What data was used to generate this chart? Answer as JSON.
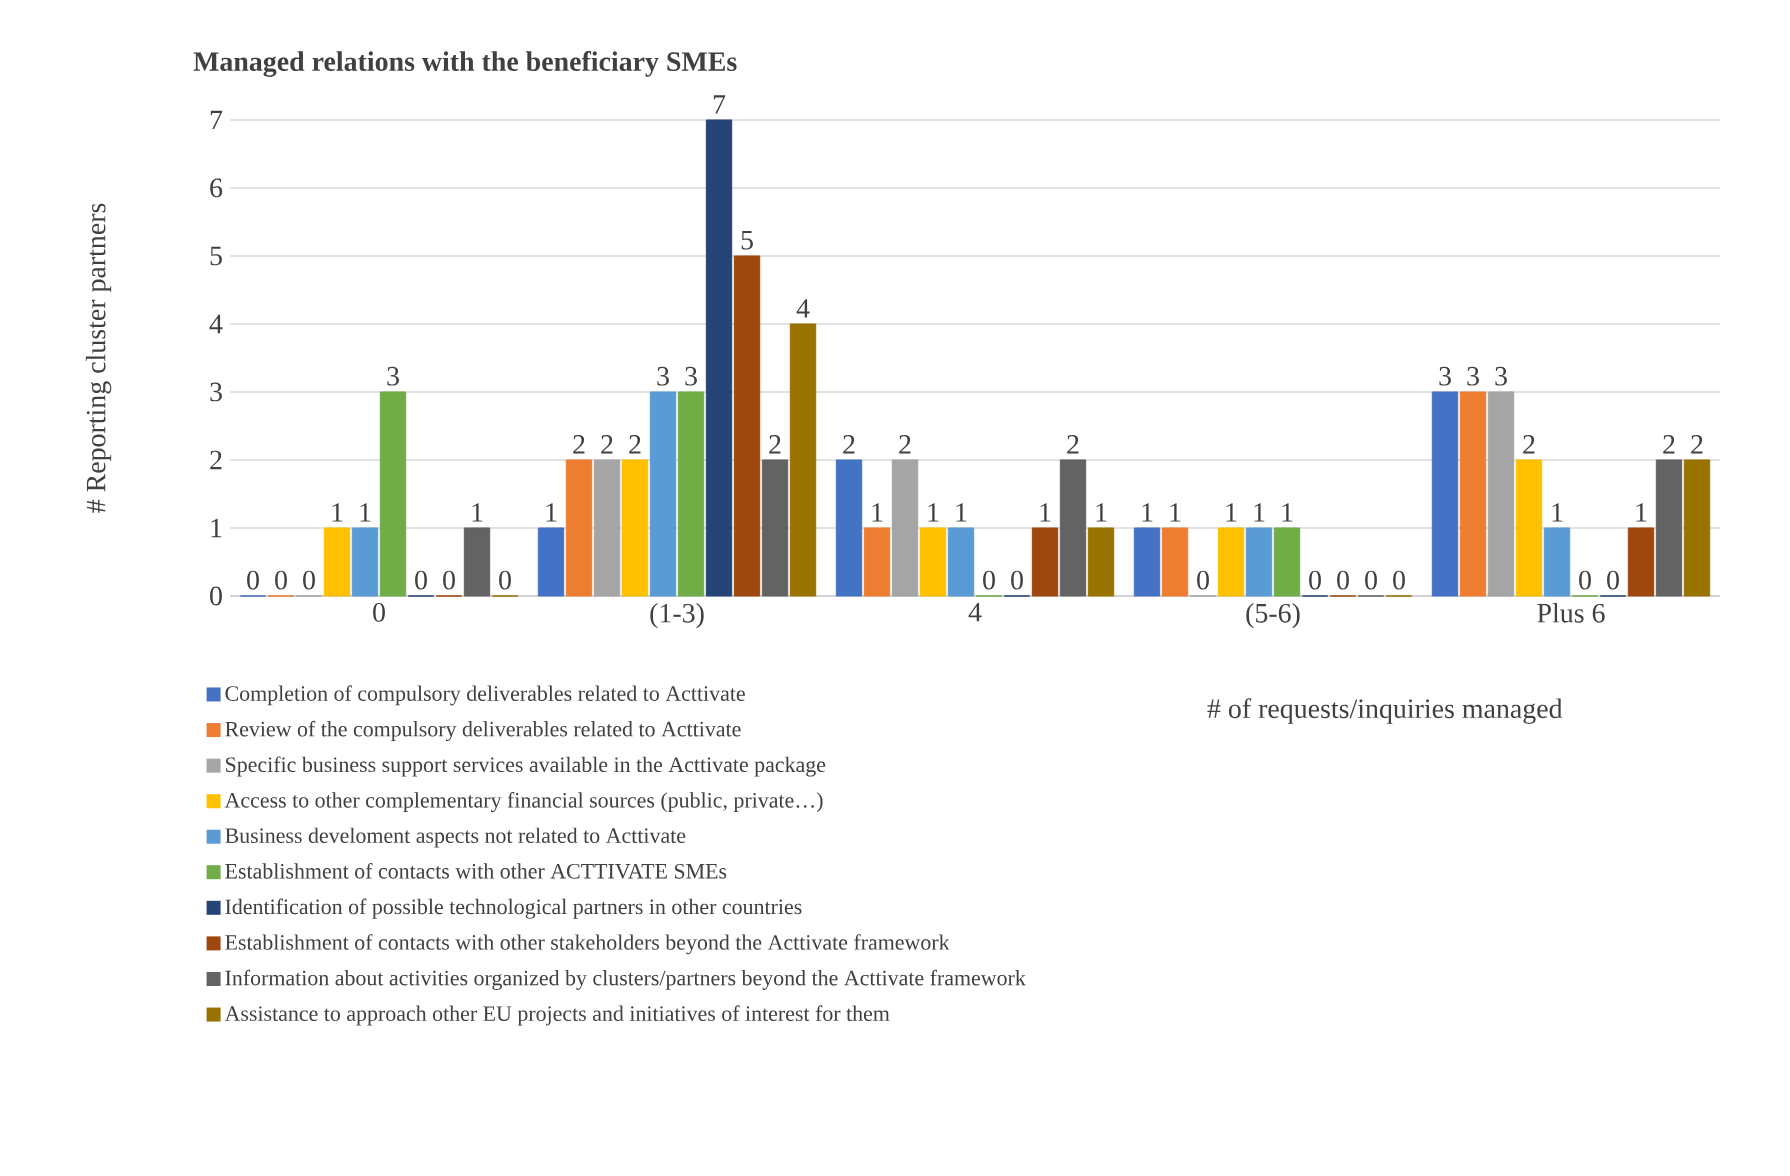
{
  "chart_data": {
    "type": "bar",
    "title": "Managed relations with the beneficiary SMEs",
    "xlabel": "#  of requests/inquiries managed",
    "ylabel": "# Reporting cluster partners",
    "categories": [
      "0",
      "(1-3)",
      "4",
      "(5-6)",
      "Plus 6"
    ],
    "series": [
      {
        "name": "Completion of compulsory deliverables related to Acttivate",
        "color": "#4472c4",
        "values": [
          0,
          1,
          2,
          1,
          3
        ]
      },
      {
        "name": "Review of the compulsory deliverables related to Acttivate",
        "color": "#ed7d31",
        "values": [
          0,
          2,
          1,
          1,
          3
        ]
      },
      {
        "name": "Specific business support services available in the Acttivate package",
        "color": "#a5a5a5",
        "values": [
          0,
          2,
          2,
          0,
          3
        ]
      },
      {
        "name": "Access to other complementary financial sources (public, private…)",
        "color": "#ffc000",
        "values": [
          1,
          2,
          1,
          1,
          2
        ]
      },
      {
        "name": "Business develoment aspects not related to Acttivate",
        "color": "#5b9bd5",
        "values": [
          1,
          3,
          1,
          1,
          1
        ]
      },
      {
        "name": "Establishment of contacts with other ACTTIVATE SMEs",
        "color": "#70ad47",
        "values": [
          3,
          3,
          0,
          1,
          0
        ]
      },
      {
        "name": "Identification of possible technological partners in other countries",
        "color": "#264478",
        "values": [
          0,
          7,
          0,
          0,
          0
        ]
      },
      {
        "name": "Establishment of contacts  with other stakeholders beyond the Acttivate framework",
        "color": "#9e480e",
        "values": [
          0,
          5,
          1,
          0,
          1
        ]
      },
      {
        "name": "Information about activities organized by clusters/partners beyond  the Acttivate framework",
        "color": "#636363",
        "values": [
          1,
          2,
          2,
          0,
          2
        ]
      },
      {
        "name": "Assistance to approach other EU projects and initiatives of interest for them",
        "color": "#997300",
        "values": [
          0,
          4,
          1,
          0,
          2
        ]
      }
    ],
    "ylim": [
      0,
      7
    ],
    "yticks": [
      0,
      1,
      2,
      3,
      4,
      5,
      6,
      7
    ],
    "grid": "y",
    "legend": "bottom left",
    "data_labels": true
  }
}
